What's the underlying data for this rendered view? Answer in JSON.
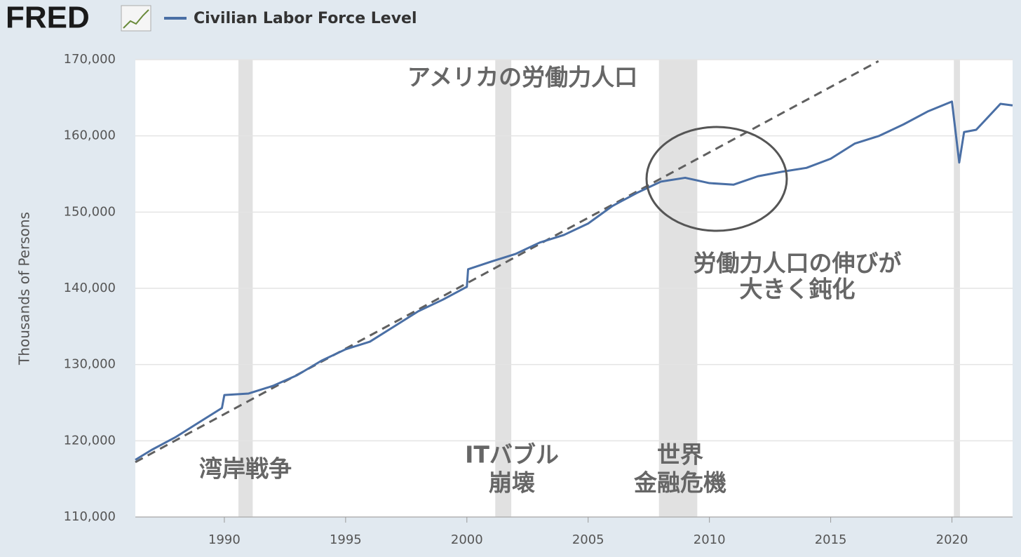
{
  "logo": "FRED",
  "chart_data": {
    "type": "line",
    "y_label": "Thousands of Persons",
    "xlim": [
      1986.33,
      2022.5
    ],
    "xticks": [
      1990,
      1995,
      2000,
      2005,
      2010,
      2015,
      2020
    ],
    "ylim": [
      110000,
      170000
    ],
    "yticks": [
      {
        "value": 110000,
        "label": "110,000"
      },
      {
        "value": 120000,
        "label": "120,000"
      },
      {
        "value": 130000,
        "label": "130,000"
      },
      {
        "value": 140000,
        "label": "140,000"
      },
      {
        "value": 150000,
        "label": "150,000"
      },
      {
        "value": 160000,
        "label": "160,000"
      },
      {
        "value": 170000,
        "label": "170,000"
      }
    ],
    "grid": true,
    "recessions": [
      [
        1990.58,
        1991.17
      ],
      [
        2001.17,
        2001.83
      ],
      [
        2007.92,
        2009.5
      ],
      [
        2020.08,
        2020.33
      ]
    ],
    "recession_color": "#e1e1e1",
    "series": [
      {
        "name": "Civilian Labor Force Level",
        "color": "#4a6fa5",
        "x": [
          1986.33,
          1987,
          1988,
          1989,
          1989.9,
          1990,
          1991,
          1992,
          1993,
          1994,
          1995,
          1996,
          1997,
          1998,
          1999,
          2000,
          2000.05,
          2001,
          2002,
          2003,
          2004,
          2005,
          2006,
          2007,
          2008,
          2009,
          2010,
          2011,
          2012,
          2013,
          2014,
          2015,
          2016,
          2017,
          2018,
          2019,
          2020,
          2020.3,
          2020.5,
          2021,
          2022,
          2022.5
        ],
        "values": [
          117500,
          118800,
          120500,
          122500,
          124300,
          126000,
          126200,
          127200,
          128600,
          130500,
          132000,
          133000,
          135000,
          137000,
          138500,
          140200,
          142500,
          143500,
          144500,
          146000,
          147000,
          148500,
          150800,
          152500,
          154000,
          154500,
          153800,
          153600,
          154700,
          155300,
          155800,
          157000,
          159000,
          160000,
          161500,
          163200,
          164500,
          156500,
          160500,
          160800,
          164200,
          164000
        ]
      }
    ],
    "trend_line": {
      "color": "#606060",
      "x": [
        1986.33,
        2016.97
      ],
      "values": [
        117200,
        169800
      ]
    },
    "annotations": [
      "アメリカの労働力人口",
      "湾岸戦争",
      "ITバブル",
      "崩壊",
      "世界",
      "金融危機",
      "労働力人口の伸びが",
      "大きく鈍化"
    ]
  }
}
